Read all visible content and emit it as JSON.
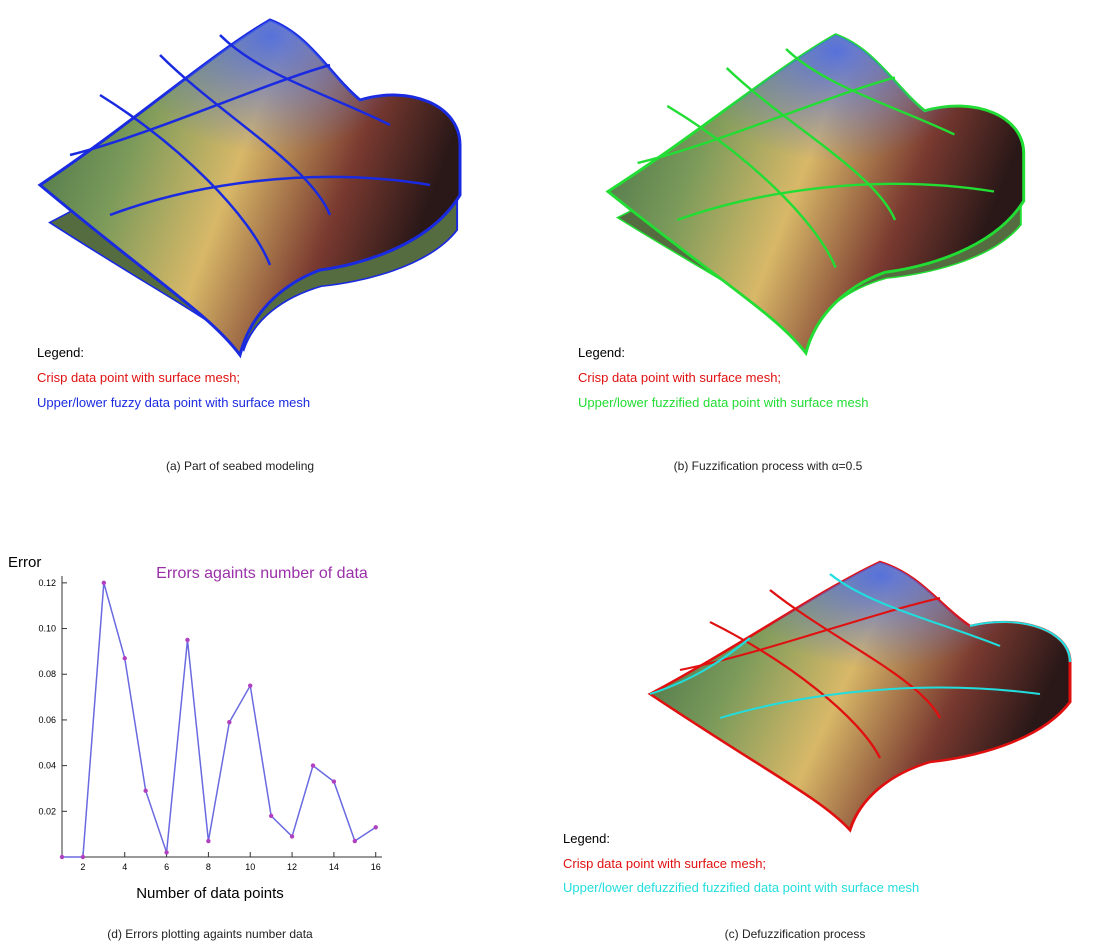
{
  "panels": [
    {
      "legend_title": "Legend:",
      "legend_items": [
        "Crisp data point with surface mesh;",
        "Upper/lower fuzzy data point with surface mesh"
      ],
      "caption": "(a)  Part of seabed modeling"
    },
    {
      "legend_title": "Legend:",
      "legend_items": [
        "Crisp data point with surface mesh;",
        "Upper/lower fuzzified data point with surface mesh"
      ],
      "caption": "(b)  Fuzzification process with α=0.5"
    },
    {
      "legend_title": "Legend:",
      "legend_items": [
        "Crisp data point with surface mesh;",
        "Upper/lower defuzzified fuzzified data point with surface mesh"
      ],
      "caption": "(c)  Defuzzification process"
    }
  ],
  "chart_data": {
    "type": "line",
    "title": "Errors againts number of data",
    "y_label": "Error",
    "x_label": "Number of data points",
    "caption": "(d)  Errors plotting againts number data",
    "x": [
      1,
      2,
      3,
      4,
      5,
      6,
      7,
      8,
      9,
      10,
      11,
      12,
      13,
      14,
      15,
      16
    ],
    "values": [
      0,
      0,
      0.12,
      0.087,
      0.029,
      0.002,
      0.095,
      0.007,
      0.059,
      0.075,
      0.018,
      0.009,
      0.04,
      0.033,
      0.007,
      0.013
    ],
    "color": "#6a6ae0",
    "marker_color": "#b040c0",
    "xlim": [
      1,
      16.3
    ],
    "ylim": [
      0,
      0.123
    ],
    "xticks": [
      2,
      4,
      6,
      8,
      10,
      12,
      14,
      16
    ],
    "yticks": [
      0.02,
      0.04,
      0.06,
      {
        "value": 0.08,
        "label": "0.08"
      },
      {
        "value": 0.1,
        "label": "0.10"
      },
      0.12
    ]
  }
}
